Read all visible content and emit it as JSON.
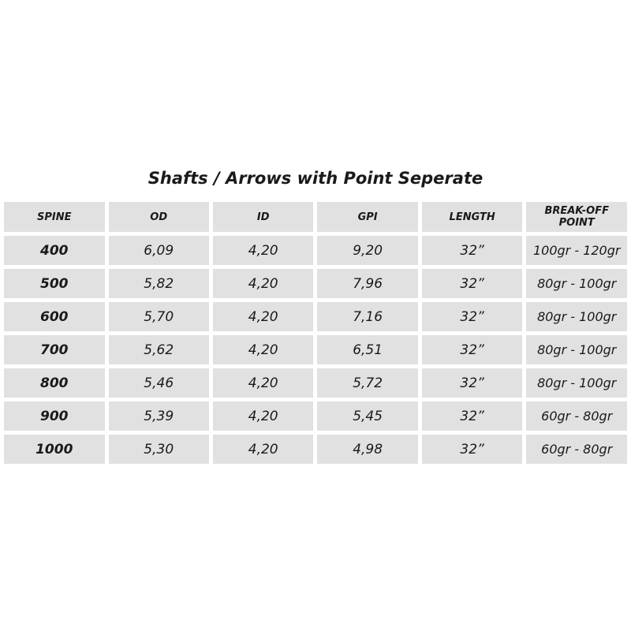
{
  "title": "Shafts / Arrows with Point Seperate",
  "headers": [
    "SPINE",
    "OD",
    "ID",
    "GPI",
    "LENGTH",
    "BREAK-OFF POINT"
  ],
  "rows": [
    [
      "400",
      "6,09",
      "4,20",
      "9,20",
      "32”",
      "100gr - 120gr"
    ],
    [
      "500",
      "5,82",
      "4,20",
      "7,96",
      "32”",
      "80gr - 100gr"
    ],
    [
      "600",
      "5,70",
      "4,20",
      "7,16",
      "32”",
      "80gr - 100gr"
    ],
    [
      "700",
      "5,62",
      "4,20",
      "6,51",
      "32”",
      "80gr - 100gr"
    ],
    [
      "800",
      "5,46",
      "4,20",
      "5,72",
      "32”",
      "80gr - 100gr"
    ],
    [
      "900",
      "5,39",
      "4,20",
      "5,45",
      "32”",
      "60gr - 80gr"
    ],
    [
      "1000",
      "5,30",
      "4,20",
      "4,98",
      "32”",
      "60gr - 80gr"
    ]
  ]
}
